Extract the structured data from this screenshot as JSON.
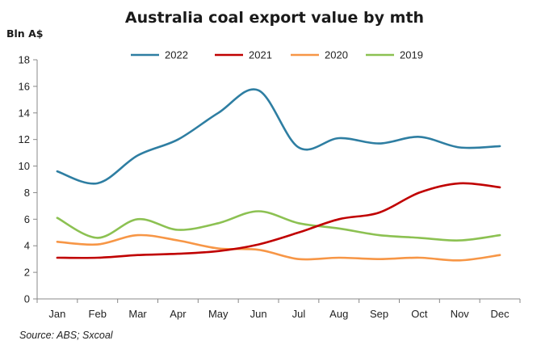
{
  "chart_data": {
    "type": "line",
    "title": "Australia coal export value by mth",
    "ylabel": "Bln A$",
    "xlabel": "",
    "ylim": [
      0,
      18
    ],
    "yticks": [
      0,
      2,
      4,
      6,
      8,
      10,
      12,
      14,
      16,
      18
    ],
    "categories": [
      "Jan",
      "Feb",
      "Mar",
      "Apr",
      "May",
      "Jun",
      "Jul",
      "Aug",
      "Sep",
      "Oct",
      "Nov",
      "Dec"
    ],
    "grid": false,
    "legend_position": "top",
    "series": [
      {
        "name": "2022",
        "color": "#2e7ea2",
        "values": [
          9.6,
          8.7,
          10.8,
          12.0,
          14.0,
          15.7,
          11.4,
          12.1,
          11.7,
          12.2,
          11.4,
          11.5
        ]
      },
      {
        "name": "2021",
        "color": "#c00000",
        "values": [
          3.1,
          3.1,
          3.3,
          3.4,
          3.6,
          4.1,
          5.0,
          6.0,
          6.5,
          8.0,
          8.7,
          8.4
        ]
      },
      {
        "name": "2020",
        "color": "#f79646",
        "values": [
          4.3,
          4.1,
          4.8,
          4.4,
          3.8,
          3.7,
          3.0,
          3.1,
          3.0,
          3.1,
          2.9,
          3.3
        ]
      },
      {
        "name": "2019",
        "color": "#8cc152",
        "values": [
          6.1,
          4.6,
          6.0,
          5.2,
          5.7,
          6.6,
          5.7,
          5.3,
          4.8,
          4.6,
          4.4,
          4.8
        ]
      }
    ],
    "source": "Source: ABS; Sxcoal"
  }
}
